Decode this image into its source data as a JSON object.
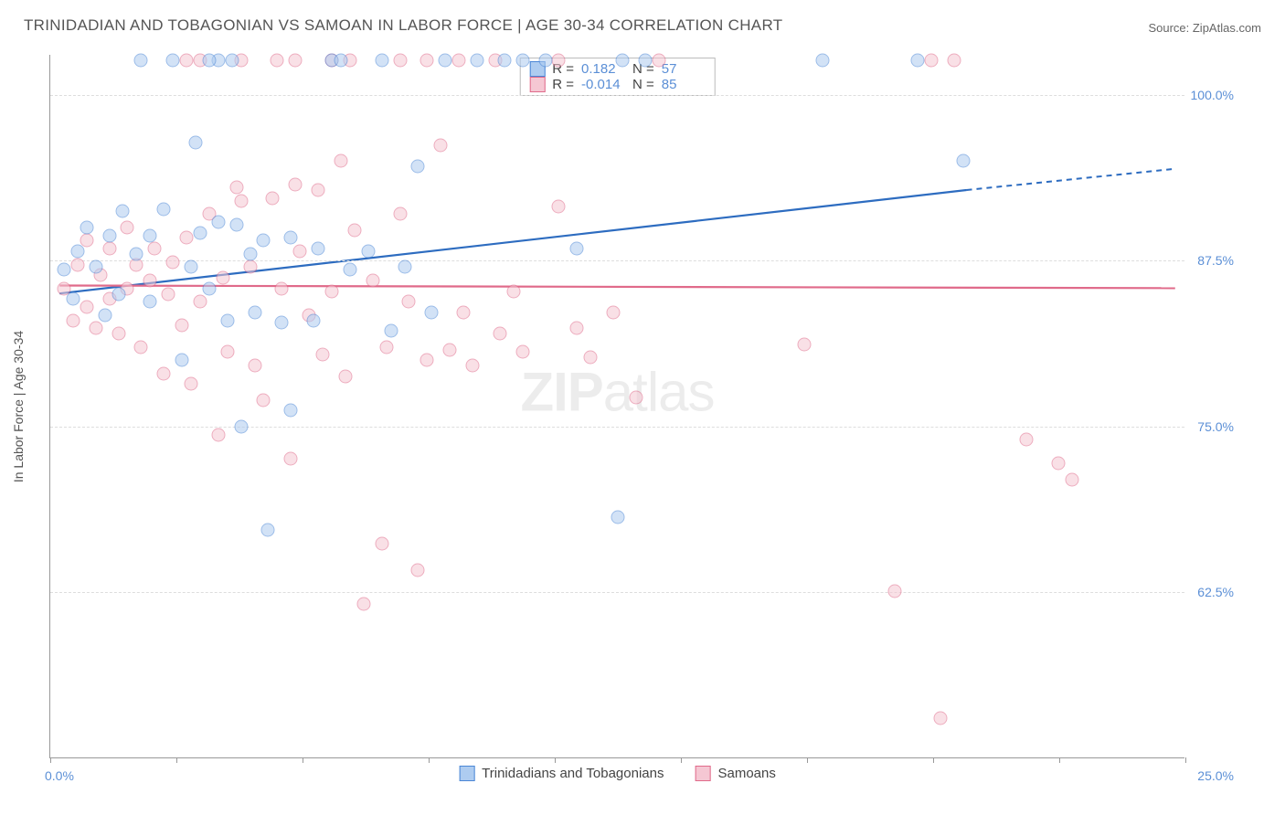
{
  "title": "TRINIDADIAN AND TOBAGONIAN VS SAMOAN IN LABOR FORCE | AGE 30-34 CORRELATION CHART",
  "source": "Source: ZipAtlas.com",
  "y_axis_title": "In Labor Force | Age 30-34",
  "watermark_a": "ZIP",
  "watermark_b": "atlas",
  "chart": {
    "type": "scatter-correlation",
    "background_color": "#ffffff",
    "grid_color": "#dddddd",
    "axis_color": "#999999",
    "xlim": [
      0,
      25
    ],
    "ylim": [
      50,
      103
    ],
    "y_ticks": [
      {
        "v": 62.5,
        "label": "62.5%"
      },
      {
        "v": 75.0,
        "label": "75.0%"
      },
      {
        "v": 87.5,
        "label": "87.5%"
      },
      {
        "v": 100.0,
        "label": "100.0%"
      }
    ],
    "x_origin_label": "0.0%",
    "x_max_label": "25.0%",
    "x_tick_positions": [
      0,
      2.78,
      5.56,
      8.33,
      11.11,
      13.89,
      16.67,
      19.44,
      22.22,
      25
    ],
    "marker_radius": 7.5,
    "marker_opacity": 0.55,
    "series": [
      {
        "id": "trinidadian",
        "label": "Trinidadians and Tobagonians",
        "fill": "#aeccf0",
        "stroke": "#4a86d6",
        "line_color": "#2d6cc0",
        "R": "0.182",
        "N": "57",
        "trend": {
          "x1": 0.2,
          "y1": 85.0,
          "x2": 20.2,
          "y2": 92.8,
          "ext_x2": 24.8,
          "ext_y2": 94.4
        },
        "points": [
          {
            "x": 0.3,
            "y": 86.8
          },
          {
            "x": 0.6,
            "y": 88.2
          },
          {
            "x": 0.5,
            "y": 84.6
          },
          {
            "x": 0.8,
            "y": 90.0
          },
          {
            "x": 1.0,
            "y": 87.0
          },
          {
            "x": 1.3,
            "y": 89.4
          },
          {
            "x": 1.2,
            "y": 83.4
          },
          {
            "x": 1.6,
            "y": 91.2
          },
          {
            "x": 1.5,
            "y": 85.0
          },
          {
            "x": 1.9,
            "y": 88.0
          },
          {
            "x": 2.0,
            "y": 102.6
          },
          {
            "x": 2.2,
            "y": 84.4
          },
          {
            "x": 2.2,
            "y": 89.4
          },
          {
            "x": 2.5,
            "y": 91.4
          },
          {
            "x": 2.7,
            "y": 102.6
          },
          {
            "x": 2.9,
            "y": 80.0
          },
          {
            "x": 3.1,
            "y": 87.0
          },
          {
            "x": 3.2,
            "y": 96.4
          },
          {
            "x": 3.3,
            "y": 89.6
          },
          {
            "x": 3.5,
            "y": 85.4
          },
          {
            "x": 3.7,
            "y": 90.4
          },
          {
            "x": 3.7,
            "y": 102.6
          },
          {
            "x": 3.9,
            "y": 83.0
          },
          {
            "x": 4.1,
            "y": 90.2
          },
          {
            "x": 4.2,
            "y": 75.0
          },
          {
            "x": 4.4,
            "y": 88.0
          },
          {
            "x": 4.5,
            "y": 83.6
          },
          {
            "x": 4.7,
            "y": 89.0
          },
          {
            "x": 4.8,
            "y": 67.2
          },
          {
            "x": 5.1,
            "y": 82.8
          },
          {
            "x": 5.3,
            "y": 89.2
          },
          {
            "x": 5.3,
            "y": 76.2
          },
          {
            "x": 5.8,
            "y": 83.0
          },
          {
            "x": 5.9,
            "y": 88.4
          },
          {
            "x": 6.2,
            "y": 102.6
          },
          {
            "x": 6.4,
            "y": 102.6
          },
          {
            "x": 6.6,
            "y": 86.8
          },
          {
            "x": 7.0,
            "y": 88.2
          },
          {
            "x": 7.3,
            "y": 102.6
          },
          {
            "x": 7.5,
            "y": 82.2
          },
          {
            "x": 7.8,
            "y": 87.0
          },
          {
            "x": 8.1,
            "y": 94.6
          },
          {
            "x": 8.4,
            "y": 83.6
          },
          {
            "x": 8.7,
            "y": 102.6
          },
          {
            "x": 9.4,
            "y": 102.6
          },
          {
            "x": 10.0,
            "y": 102.6
          },
          {
            "x": 10.4,
            "y": 102.6
          },
          {
            "x": 10.9,
            "y": 102.6
          },
          {
            "x": 11.6,
            "y": 88.4
          },
          {
            "x": 12.5,
            "y": 68.2
          },
          {
            "x": 12.6,
            "y": 102.6
          },
          {
            "x": 13.1,
            "y": 102.6
          },
          {
            "x": 17.0,
            "y": 102.6
          },
          {
            "x": 19.1,
            "y": 102.6
          },
          {
            "x": 20.1,
            "y": 95.0
          },
          {
            "x": 4.0,
            "y": 102.6
          },
          {
            "x": 3.5,
            "y": 102.6
          }
        ]
      },
      {
        "id": "samoan",
        "label": "Samoans",
        "fill": "#f5c7d3",
        "stroke": "#e06a8a",
        "line_color": "#e06a8a",
        "R": "-0.014",
        "N": "85",
        "trend": {
          "x1": 0.2,
          "y1": 85.6,
          "x2": 24.8,
          "y2": 85.4,
          "ext_x2": 24.8,
          "ext_y2": 85.4
        },
        "points": [
          {
            "x": 0.3,
            "y": 85.4
          },
          {
            "x": 0.5,
            "y": 83.0
          },
          {
            "x": 0.6,
            "y": 87.2
          },
          {
            "x": 0.8,
            "y": 84.0
          },
          {
            "x": 0.8,
            "y": 89.0
          },
          {
            "x": 1.0,
            "y": 82.4
          },
          {
            "x": 1.1,
            "y": 86.4
          },
          {
            "x": 1.3,
            "y": 84.6
          },
          {
            "x": 1.3,
            "y": 88.4
          },
          {
            "x": 1.5,
            "y": 82.0
          },
          {
            "x": 1.7,
            "y": 90.0
          },
          {
            "x": 1.7,
            "y": 85.4
          },
          {
            "x": 1.9,
            "y": 87.2
          },
          {
            "x": 2.0,
            "y": 81.0
          },
          {
            "x": 2.2,
            "y": 86.0
          },
          {
            "x": 2.3,
            "y": 88.4
          },
          {
            "x": 2.5,
            "y": 79.0
          },
          {
            "x": 2.6,
            "y": 85.0
          },
          {
            "x": 2.7,
            "y": 87.4
          },
          {
            "x": 2.9,
            "y": 82.6
          },
          {
            "x": 3.0,
            "y": 89.2
          },
          {
            "x": 3.1,
            "y": 78.2
          },
          {
            "x": 3.3,
            "y": 84.4
          },
          {
            "x": 3.5,
            "y": 91.0
          },
          {
            "x": 3.7,
            "y": 74.4
          },
          {
            "x": 3.8,
            "y": 86.2
          },
          {
            "x": 3.9,
            "y": 80.6
          },
          {
            "x": 4.1,
            "y": 93.0
          },
          {
            "x": 4.2,
            "y": 92.0
          },
          {
            "x": 4.4,
            "y": 87.0
          },
          {
            "x": 4.5,
            "y": 79.6
          },
          {
            "x": 4.7,
            "y": 77.0
          },
          {
            "x": 4.9,
            "y": 92.2
          },
          {
            "x": 5.1,
            "y": 85.4
          },
          {
            "x": 5.3,
            "y": 72.6
          },
          {
            "x": 5.4,
            "y": 93.2
          },
          {
            "x": 5.5,
            "y": 88.2
          },
          {
            "x": 5.7,
            "y": 83.4
          },
          {
            "x": 5.9,
            "y": 92.8
          },
          {
            "x": 6.0,
            "y": 80.4
          },
          {
            "x": 6.2,
            "y": 85.2
          },
          {
            "x": 6.4,
            "y": 95.0
          },
          {
            "x": 6.5,
            "y": 78.8
          },
          {
            "x": 6.7,
            "y": 89.8
          },
          {
            "x": 6.9,
            "y": 61.6
          },
          {
            "x": 7.1,
            "y": 86.0
          },
          {
            "x": 7.3,
            "y": 66.2
          },
          {
            "x": 7.4,
            "y": 81.0
          },
          {
            "x": 7.7,
            "y": 91.0
          },
          {
            "x": 7.7,
            "y": 102.6
          },
          {
            "x": 7.9,
            "y": 84.4
          },
          {
            "x": 8.1,
            "y": 64.2
          },
          {
            "x": 8.3,
            "y": 80.0
          },
          {
            "x": 8.6,
            "y": 96.2
          },
          {
            "x": 8.8,
            "y": 80.8
          },
          {
            "x": 9.1,
            "y": 83.6
          },
          {
            "x": 9.3,
            "y": 79.6
          },
          {
            "x": 9.9,
            "y": 82.0
          },
          {
            "x": 10.2,
            "y": 85.2
          },
          {
            "x": 10.4,
            "y": 80.6
          },
          {
            "x": 11.2,
            "y": 102.6
          },
          {
            "x": 11.2,
            "y": 91.6
          },
          {
            "x": 11.6,
            "y": 82.4
          },
          {
            "x": 11.9,
            "y": 80.2
          },
          {
            "x": 12.4,
            "y": 83.6
          },
          {
            "x": 12.9,
            "y": 77.2
          },
          {
            "x": 13.4,
            "y": 102.6
          },
          {
            "x": 16.6,
            "y": 81.2
          },
          {
            "x": 18.6,
            "y": 62.6
          },
          {
            "x": 19.4,
            "y": 102.6
          },
          {
            "x": 19.6,
            "y": 53.0
          },
          {
            "x": 19.9,
            "y": 102.6
          },
          {
            "x": 21.5,
            "y": 74.0
          },
          {
            "x": 22.2,
            "y": 72.2
          },
          {
            "x": 22.5,
            "y": 71.0
          },
          {
            "x": 3.0,
            "y": 102.6
          },
          {
            "x": 3.3,
            "y": 102.6
          },
          {
            "x": 4.2,
            "y": 102.6
          },
          {
            "x": 5.0,
            "y": 102.6
          },
          {
            "x": 5.4,
            "y": 102.6
          },
          {
            "x": 6.2,
            "y": 102.6
          },
          {
            "x": 6.6,
            "y": 102.6
          },
          {
            "x": 8.3,
            "y": 102.6
          },
          {
            "x": 9.0,
            "y": 102.6
          },
          {
            "x": 9.8,
            "y": 102.6
          }
        ]
      }
    ],
    "legend_box": {
      "r_label": "R =",
      "n_label": "N ="
    }
  }
}
